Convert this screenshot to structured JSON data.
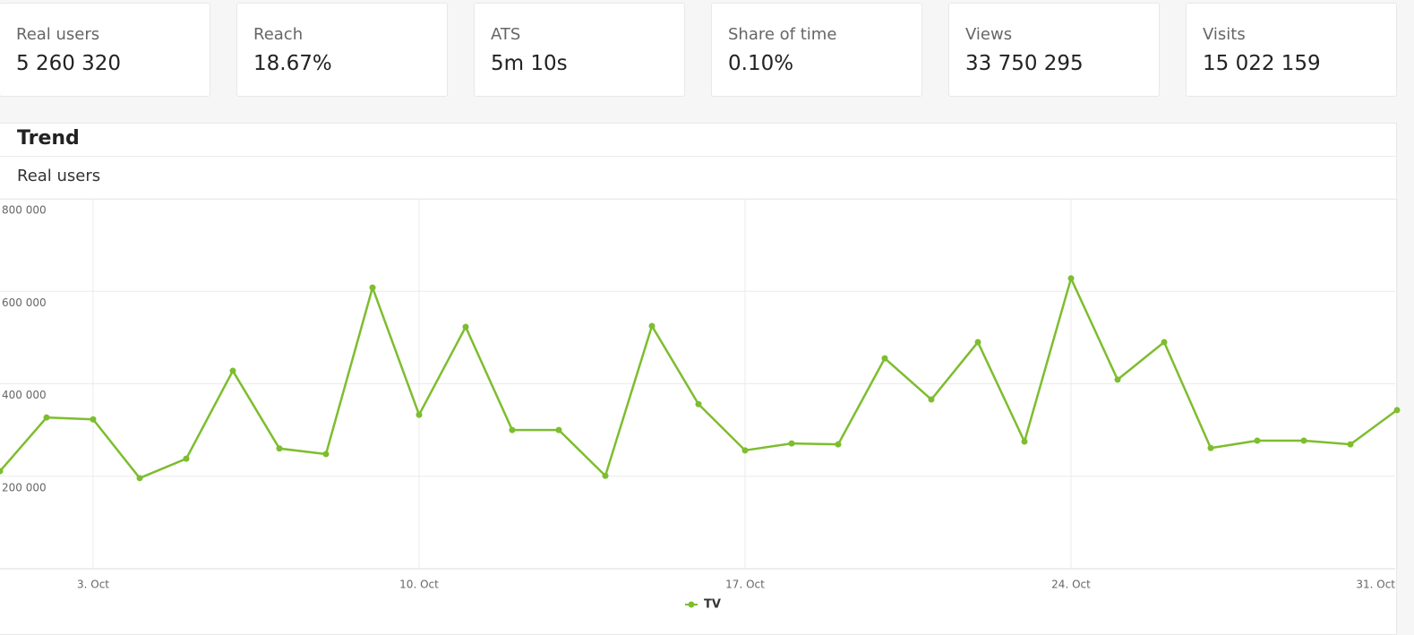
{
  "metrics": [
    {
      "label": "Real users",
      "value": "5 260 320"
    },
    {
      "label": "Reach",
      "value": "18.67%"
    },
    {
      "label": "ATS",
      "value": "5m 10s"
    },
    {
      "label": "Share of time",
      "value": "0.10%"
    },
    {
      "label": "Views",
      "value": "33 750 295"
    },
    {
      "label": "Visits",
      "value": "15 022 159"
    }
  ],
  "panel": {
    "title": "Trend",
    "subtitle": "Real users"
  },
  "chart_data": {
    "type": "line",
    "x": [
      1,
      2,
      3,
      4,
      5,
      6,
      7,
      8,
      9,
      10,
      11,
      12,
      13,
      14,
      15,
      16,
      17,
      18,
      19,
      20,
      21,
      22,
      23,
      24,
      25,
      26,
      27,
      28,
      29,
      30,
      31
    ],
    "xlim": [
      1,
      31
    ],
    "xticks": [
      {
        "value": 3,
        "label": "3. Oct"
      },
      {
        "value": 10,
        "label": "10. Oct"
      },
      {
        "value": 17,
        "label": "17. Oct"
      },
      {
        "value": 24,
        "label": "24. Oct"
      },
      {
        "value": 31,
        "label": "31. Oct"
      }
    ],
    "ylim": [
      0,
      800000
    ],
    "yticks": [
      {
        "value": 200000,
        "label": "200 000"
      },
      {
        "value": 400000,
        "label": "400 000"
      },
      {
        "value": 600000,
        "label": "600 000"
      },
      {
        "value": 800000,
        "label": "800 000"
      }
    ],
    "grid": true,
    "series": [
      {
        "name": "TV",
        "color": "#7dbd2f",
        "values": [
          211000,
          327000,
          323000,
          196000,
          238000,
          428000,
          260000,
          248000,
          608000,
          333000,
          523000,
          300000,
          300000,
          201000,
          525000,
          356000,
          256000,
          271000,
          269000,
          455000,
          366000,
          490000,
          275000,
          628000,
          409000,
          490000,
          261000,
          277000,
          277000,
          269000,
          343000
        ]
      }
    ]
  }
}
